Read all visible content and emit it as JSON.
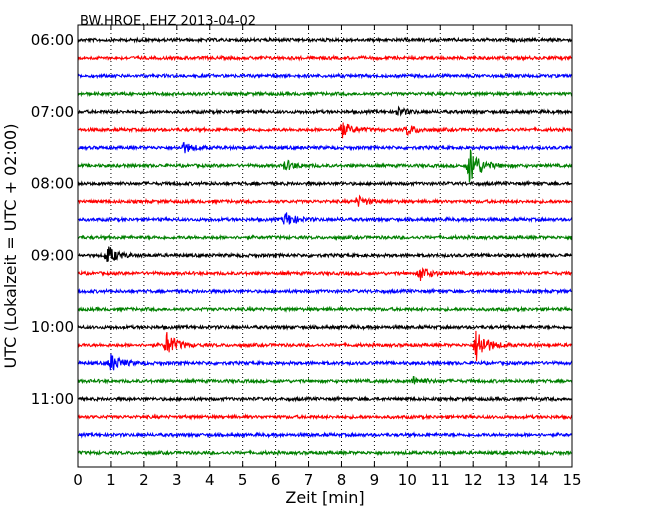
{
  "chart_data": {
    "type": "line",
    "title": "BW.HROE..EHZ 2013-04-02",
    "xlabel": "Zeit  [min]",
    "ylabel": "UTC (Lokalzeit = UTC + 02:00)",
    "xlim": [
      0,
      15
    ],
    "x_ticks": [
      "0",
      "1",
      "2",
      "3",
      "4",
      "5",
      "6",
      "7",
      "8",
      "9",
      "10",
      "11",
      "12",
      "13",
      "14",
      "15"
    ],
    "y_ticks": [
      "06:00",
      "07:00",
      "08:00",
      "09:00",
      "10:00",
      "11:00"
    ],
    "grid": "vertical-dotted",
    "trace_colors": [
      "#000000",
      "#ff0000",
      "#0000ff",
      "#008000"
    ],
    "traces": [
      {
        "start": "06:00",
        "events": []
      },
      {
        "start": "06:15",
        "events": []
      },
      {
        "start": "06:30",
        "events": []
      },
      {
        "start": "06:45",
        "events": []
      },
      {
        "start": "07:00",
        "events": [
          {
            "t": 9.7,
            "amp": 4
          }
        ]
      },
      {
        "start": "07:15",
        "events": [
          {
            "t": 8.0,
            "amp": 8
          },
          {
            "t": 10.0,
            "amp": 5
          }
        ]
      },
      {
        "start": "07:30",
        "events": [
          {
            "t": 3.2,
            "amp": 5
          }
        ]
      },
      {
        "start": "07:45",
        "events": [
          {
            "t": 6.3,
            "amp": 5
          },
          {
            "t": 11.9,
            "amp": 20
          }
        ]
      },
      {
        "start": "08:00",
        "events": []
      },
      {
        "start": "08:15",
        "events": [
          {
            "t": 8.5,
            "amp": 5
          }
        ]
      },
      {
        "start": "08:30",
        "events": [
          {
            "t": 6.3,
            "amp": 7
          }
        ]
      },
      {
        "start": "08:45",
        "events": []
      },
      {
        "start": "09:00",
        "events": [
          {
            "t": 0.9,
            "amp": 9
          }
        ]
      },
      {
        "start": "09:15",
        "events": [
          {
            "t": 10.4,
            "amp": 7
          }
        ]
      },
      {
        "start": "09:30",
        "events": []
      },
      {
        "start": "09:45",
        "events": []
      },
      {
        "start": "10:00",
        "events": []
      },
      {
        "start": "10:15",
        "events": [
          {
            "t": 2.7,
            "amp": 12
          },
          {
            "t": 12.1,
            "amp": 17
          }
        ]
      },
      {
        "start": "10:30",
        "events": [
          {
            "t": 1.0,
            "amp": 9
          }
        ]
      },
      {
        "start": "10:45",
        "events": [
          {
            "t": 10.2,
            "amp": 4
          }
        ]
      },
      {
        "start": "11:00",
        "events": []
      },
      {
        "start": "11:15",
        "events": []
      },
      {
        "start": "11:30",
        "events": []
      },
      {
        "start": "11:45",
        "events": []
      }
    ]
  }
}
